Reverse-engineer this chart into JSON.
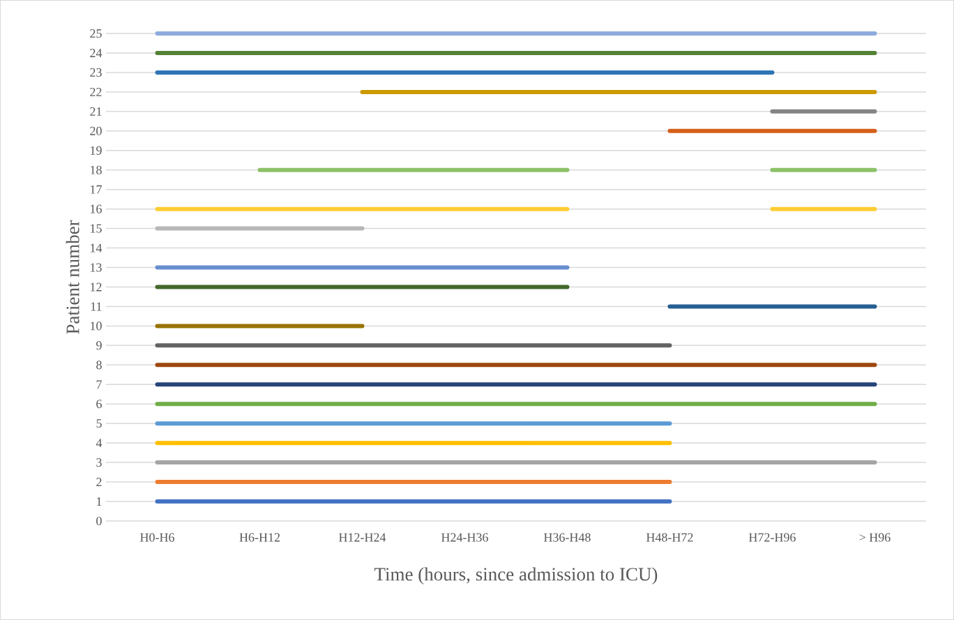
{
  "chart_data": {
    "type": "line",
    "xlabel": "Time (hours, since admission to ICU)",
    "ylabel": "Patient number",
    "categories": [
      "H0-H6",
      "H6-H12",
      "H12-H24",
      "H24-H36",
      "H36-H48",
      "H48-H72",
      "H72-H96",
      "> H96"
    ],
    "ylim": [
      0,
      25
    ],
    "yticks": [
      0,
      1,
      2,
      3,
      4,
      5,
      6,
      7,
      8,
      9,
      10,
      11,
      12,
      13,
      14,
      15,
      16,
      17,
      18,
      19,
      20,
      21,
      22,
      23,
      24,
      25
    ],
    "grid": "y",
    "line_style": "solid",
    "series": [
      {
        "color": "#4472c4",
        "values": [
          1,
          1,
          1,
          1,
          1,
          1,
          null,
          null
        ]
      },
      {
        "color": "#ed7d31",
        "values": [
          2,
          2,
          2,
          2,
          2,
          2,
          null,
          null
        ]
      },
      {
        "color": "#a5a5a5",
        "values": [
          3,
          3,
          3,
          3,
          3,
          3,
          3,
          3
        ]
      },
      {
        "color": "#ffc000",
        "values": [
          4,
          4,
          4,
          4,
          4,
          4,
          null,
          null
        ]
      },
      {
        "color": "#5b9bd5",
        "values": [
          5,
          5,
          5,
          5,
          5,
          5,
          null,
          null
        ]
      },
      {
        "color": "#70ad47",
        "values": [
          6,
          6,
          6,
          6,
          6,
          6,
          6,
          6
        ]
      },
      {
        "color": "#264478",
        "values": [
          7,
          7,
          7,
          7,
          7,
          7,
          7,
          7
        ]
      },
      {
        "color": "#9e480e",
        "values": [
          8,
          8,
          8,
          8,
          8,
          8,
          8,
          8
        ]
      },
      {
        "color": "#636363",
        "values": [
          9,
          9,
          9,
          9,
          9,
          9,
          null,
          null
        ]
      },
      {
        "color": "#997300",
        "values": [
          10,
          10,
          10,
          null,
          null,
          null,
          null,
          null
        ]
      },
      {
        "color": "#255e91",
        "values": [
          null,
          null,
          null,
          null,
          null,
          11,
          11,
          11
        ]
      },
      {
        "color": "#43682b",
        "values": [
          12,
          12,
          12,
          12,
          12,
          null,
          null,
          null
        ]
      },
      {
        "color": "#698ed0",
        "values": [
          13,
          13,
          13,
          13,
          13,
          null,
          null,
          null
        ]
      },
      {
        "color": "#b7b7b7",
        "values": [
          15,
          15,
          15,
          null,
          null,
          null,
          null,
          null
        ]
      },
      {
        "color": "#ffcd33",
        "values": [
          16,
          16,
          16,
          16,
          16,
          null,
          16,
          16
        ]
      },
      {
        "color": "#8cc168",
        "values": [
          null,
          18,
          18,
          18,
          18,
          null,
          18,
          18
        ]
      },
      {
        "color": "#d55f1a",
        "values": [
          null,
          null,
          null,
          null,
          null,
          20,
          20,
          20
        ]
      },
      {
        "color": "#848484",
        "values": [
          null,
          null,
          null,
          null,
          null,
          null,
          21,
          21
        ]
      },
      {
        "color": "#cc9a00",
        "values": [
          null,
          null,
          22,
          22,
          22,
          22,
          22,
          22
        ]
      },
      {
        "color": "#2f75b5",
        "values": [
          23,
          23,
          23,
          23,
          23,
          23,
          23,
          null
        ]
      },
      {
        "color": "#548235",
        "values": [
          24,
          24,
          24,
          24,
          24,
          24,
          24,
          24
        ]
      },
      {
        "color": "#8faadc",
        "values": [
          25,
          25,
          25,
          25,
          25,
          25,
          25,
          25
        ]
      }
    ]
  }
}
